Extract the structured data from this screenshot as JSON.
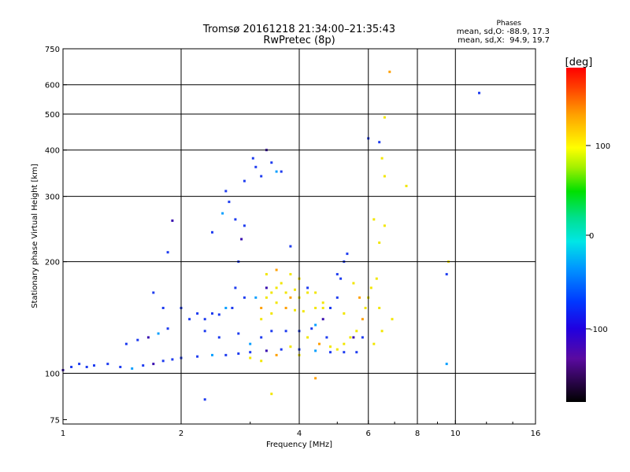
{
  "chart_data": {
    "type": "scatter",
    "title": "Tromsø 20161218 21:34:00–21:35:43",
    "subtitle": "RwPretec (8p)",
    "xlabel": "Frequency [MHz]",
    "ylabel": "Stationary phase Virtual Height [km]",
    "x_scale": "log",
    "y_scale": "log",
    "xlim": [
      1,
      16
    ],
    "ylim": [
      73,
      750
    ],
    "x_ticks": [
      "1",
      "2",
      "4",
      "6",
      "8",
      "10",
      "16"
    ],
    "y_ticks": [
      "75",
      "100",
      "200",
      "300",
      "400",
      "500",
      "600",
      "750"
    ],
    "grid": true,
    "stats": {
      "title": "Phases",
      "line_o": "mean, sd,O: -88.9, 17.3",
      "line_x": "mean, sd,X:  94.9, 19.7"
    },
    "colorbar": {
      "label": "[deg]",
      "range": [
        -180,
        180
      ],
      "ticks": [
        "100",
        "0",
        "-100"
      ]
    },
    "trace_colors": {
      "o_mode": "#1e3cf0",
      "x_mode": "#f2e600",
      "o_mode_dark": "#3a10b0",
      "x_mode_warm": "#ffa000"
    },
    "series": [
      {
        "mode": "O",
        "points": [
          [
            1.0,
            102
          ],
          [
            1.05,
            104
          ],
          [
            1.1,
            106
          ],
          [
            1.15,
            104
          ],
          [
            1.2,
            105
          ],
          [
            1.3,
            106
          ],
          [
            1.4,
            104
          ],
          [
            1.5,
            103
          ],
          [
            1.6,
            105
          ],
          [
            1.7,
            106
          ],
          [
            1.8,
            108
          ],
          [
            1.9,
            109
          ],
          [
            2.0,
            110
          ],
          [
            2.2,
            111
          ],
          [
            2.4,
            112
          ],
          [
            2.6,
            112
          ],
          [
            2.8,
            113
          ],
          [
            3.0,
            114
          ],
          [
            3.3,
            115
          ],
          [
            3.6,
            116
          ],
          [
            4.0,
            116
          ],
          [
            4.4,
            115
          ],
          [
            4.8,
            114
          ],
          [
            5.2,
            114
          ],
          [
            5.6,
            114
          ],
          [
            1.45,
            120
          ],
          [
            1.55,
            123
          ],
          [
            1.65,
            125
          ],
          [
            1.75,
            128
          ],
          [
            1.85,
            132
          ],
          [
            2.1,
            140
          ],
          [
            2.3,
            140
          ],
          [
            2.5,
            144
          ],
          [
            2.7,
            150
          ],
          [
            2.9,
            160
          ],
          [
            3.1,
            160
          ],
          [
            3.3,
            170
          ],
          [
            1.8,
            150
          ],
          [
            1.7,
            165
          ],
          [
            2.0,
            150
          ],
          [
            2.2,
            145
          ],
          [
            2.4,
            145
          ],
          [
            2.6,
            150
          ],
          [
            2.75,
            170
          ],
          [
            2.8,
            200
          ],
          [
            2.85,
            230
          ],
          [
            2.75,
            260
          ],
          [
            2.65,
            290
          ],
          [
            2.6,
            310
          ],
          [
            2.55,
            270
          ],
          [
            2.9,
            250
          ],
          [
            3.05,
            380
          ],
          [
            3.1,
            360
          ],
          [
            3.2,
            340
          ],
          [
            3.3,
            400
          ],
          [
            3.4,
            370
          ],
          [
            3.5,
            350
          ],
          [
            3.6,
            350
          ],
          [
            3.8,
            220
          ],
          [
            3.4,
            130
          ],
          [
            3.7,
            130
          ],
          [
            4.0,
            130
          ],
          [
            4.3,
            132
          ],
          [
            4.6,
            140
          ],
          [
            4.8,
            150
          ],
          [
            5.0,
            160
          ],
          [
            5.1,
            180
          ],
          [
            5.2,
            200
          ],
          [
            5.0,
            185
          ],
          [
            5.3,
            210
          ],
          [
            4.4,
            135
          ],
          [
            4.7,
            125
          ],
          [
            5.5,
            125
          ],
          [
            5.8,
            125
          ],
          [
            4.2,
            170
          ],
          [
            2.5,
            125
          ],
          [
            2.8,
            128
          ],
          [
            3.0,
            120
          ],
          [
            3.2,
            125
          ],
          [
            2.3,
            130
          ],
          [
            1.85,
            212
          ],
          [
            1.9,
            258
          ],
          [
            2.4,
            240
          ],
          [
            2.3,
            85
          ],
          [
            9.5,
            106
          ],
          [
            11.5,
            570
          ],
          [
            9.5,
            185
          ],
          [
            6.4,
            420
          ],
          [
            6.0,
            430
          ],
          [
            2.9,
            330
          ]
        ]
      },
      {
        "mode": "X",
        "points": [
          [
            3.2,
            150
          ],
          [
            3.3,
            160
          ],
          [
            3.4,
            165
          ],
          [
            3.5,
            170
          ],
          [
            3.6,
            175
          ],
          [
            3.7,
            165
          ],
          [
            3.8,
            160
          ],
          [
            3.9,
            168
          ],
          [
            4.0,
            160
          ],
          [
            4.2,
            165
          ],
          [
            4.4,
            165
          ],
          [
            3.5,
            155
          ],
          [
            3.7,
            150
          ],
          [
            3.9,
            148
          ],
          [
            4.1,
            147
          ],
          [
            4.4,
            150
          ],
          [
            4.6,
            155
          ],
          [
            3.3,
            185
          ],
          [
            3.5,
            190
          ],
          [
            3.8,
            185
          ],
          [
            4.0,
            180
          ],
          [
            3.2,
            140
          ],
          [
            3.4,
            145
          ],
          [
            4.2,
            125
          ],
          [
            4.5,
            120
          ],
          [
            4.8,
            118
          ],
          [
            5.0,
            116
          ],
          [
            5.2,
            120
          ],
          [
            5.4,
            125
          ],
          [
            5.6,
            130
          ],
          [
            5.8,
            140
          ],
          [
            5.9,
            150
          ],
          [
            6.0,
            160
          ],
          [
            6.1,
            170
          ],
          [
            6.3,
            180
          ],
          [
            6.4,
            150
          ],
          [
            5.7,
            160
          ],
          [
            5.5,
            175
          ],
          [
            6.5,
            130
          ],
          [
            6.2,
            120
          ],
          [
            3.0,
            110
          ],
          [
            3.2,
            108
          ],
          [
            3.5,
            112
          ],
          [
            3.8,
            118
          ],
          [
            4.0,
            112
          ],
          [
            6.4,
            225
          ],
          [
            6.6,
            340
          ],
          [
            6.6,
            490
          ],
          [
            6.8,
            650
          ],
          [
            6.5,
            380
          ],
          [
            6.2,
            260
          ],
          [
            7.5,
            320
          ],
          [
            9.6,
            200
          ],
          [
            6.6,
            250
          ],
          [
            4.4,
            97
          ],
          [
            3.4,
            88
          ],
          [
            4.6,
            150
          ],
          [
            6.9,
            140
          ],
          [
            5.2,
            145
          ]
        ]
      }
    ]
  }
}
